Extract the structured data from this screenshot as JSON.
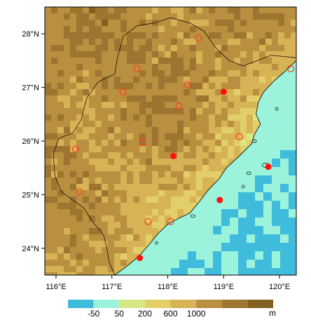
{
  "map": {
    "lon_ticks": [
      116,
      117,
      118,
      119,
      120
    ],
    "lon_labels": [
      "116°E",
      "117°E",
      "118°E",
      "119°E",
      "120°E"
    ],
    "lat_ticks": [
      24,
      25,
      26,
      27,
      28
    ],
    "lat_labels": [
      "24°N",
      "25°N",
      "26°N",
      "27°N",
      "28°N"
    ],
    "extent": {
      "lon": [
        115.8,
        120.3
      ],
      "lat": [
        23.5,
        28.5
      ]
    }
  },
  "colorbar": {
    "colors": [
      "#3fbbdc",
      "#9bf3dc",
      "#d6e784",
      "#e2cf6a",
      "#d7b356",
      "#b9903f",
      "#9d7430",
      "#83601f"
    ],
    "labels": [
      "-50",
      "50",
      "200",
      "600",
      "1000"
    ],
    "unit": "m"
  },
  "stations": {
    "hollow": [
      [
        118.55,
        27.92
      ],
      [
        117.45,
        27.35
      ],
      [
        117.2,
        26.92
      ],
      [
        118.35,
        27.05
      ],
      [
        118.2,
        26.65
      ],
      [
        120.2,
        27.35
      ],
      [
        116.35,
        25.85
      ],
      [
        117.55,
        25.98
      ],
      [
        119.28,
        26.08
      ],
      [
        116.42,
        25.05
      ],
      [
        117.65,
        24.5
      ],
      [
        118.05,
        24.5
      ]
    ],
    "filled": [
      [
        119.0,
        26.92
      ],
      [
        118.1,
        25.72
      ],
      [
        119.8,
        25.52
      ],
      [
        118.93,
        24.9
      ],
      [
        117.5,
        23.82
      ]
    ],
    "hollow_color": "#ff3b1f",
    "filled_color": "#ff1010"
  }
}
